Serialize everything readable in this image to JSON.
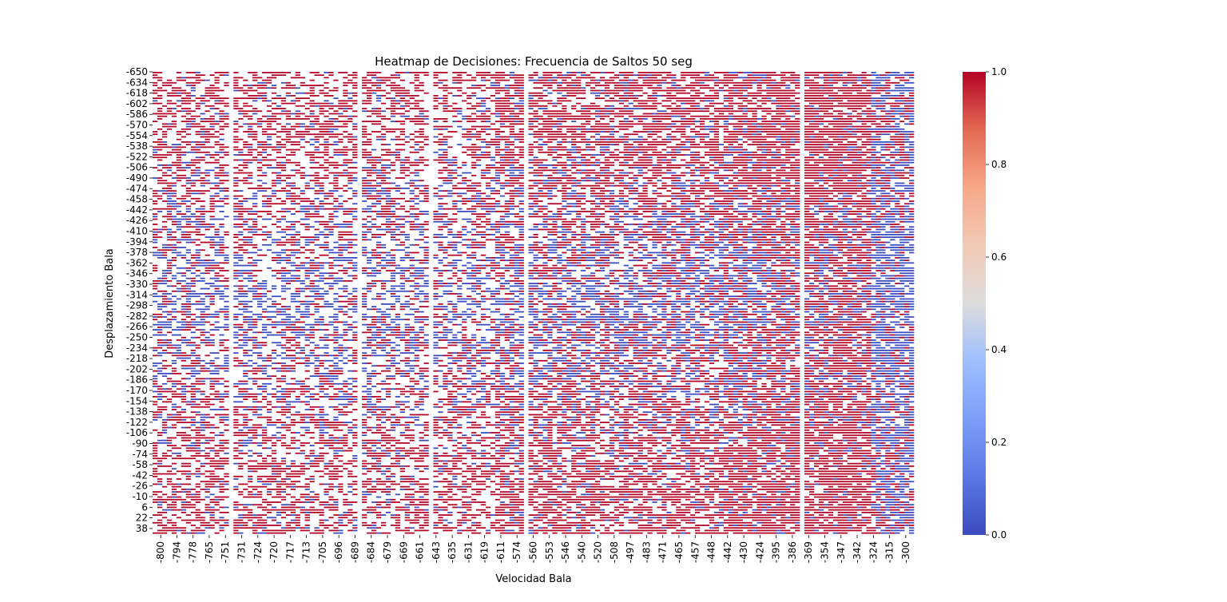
{
  "chart_data": {
    "type": "heatmap",
    "title": "Heatmap de Decisiones: Frecuencia de Saltos 50 seg",
    "xlabel": "Velocidad Bala",
    "ylabel": "Desplazamiento Bala",
    "x_tick_labels": [
      "-800",
      "-794",
      "-778",
      "-765",
      "-751",
      "-731",
      "-724",
      "-720",
      "-717",
      "-713",
      "-705",
      "-696",
      "-689",
      "-684",
      "-679",
      "-669",
      "-661",
      "-643",
      "-635",
      "-631",
      "-619",
      "-611",
      "-574",
      "-560",
      "-553",
      "-546",
      "-540",
      "-520",
      "-508",
      "-497",
      "-483",
      "-471",
      "-465",
      "-457",
      "-448",
      "-442",
      "-430",
      "-424",
      "-395",
      "-386",
      "-369",
      "-354",
      "-347",
      "-342",
      "-324",
      "-315",
      "-300"
    ],
    "y_tick_labels": [
      "-650",
      "-634",
      "-618",
      "-602",
      "-586",
      "-570",
      "-554",
      "-538",
      "-522",
      "-506",
      "-490",
      "-474",
      "-458",
      "-442",
      "-426",
      "-410",
      "-394",
      "-378",
      "-362",
      "-346",
      "-330",
      "-314",
      "-298",
      "-282",
      "-266",
      "-250",
      "-234",
      "-218",
      "-202",
      "-186",
      "-170",
      "-154",
      "-138",
      "-122",
      "-106",
      "-90",
      "-74",
      "-58",
      "-42",
      "-26",
      "-10",
      "6",
      "22",
      "38"
    ],
    "colorbar": {
      "min": 0.0,
      "max": 1.0,
      "ticks": [
        "0.0",
        "0.2",
        "0.4",
        "0.6",
        "0.8",
        "1.0"
      ],
      "colormap": "coolwarm",
      "low_color": "#3b4cc0",
      "mid_color": "#dddddd",
      "high_color": "#b40426"
    },
    "values_description_note": "",
    "grid": false,
    "legend": "colorbar-right"
  }
}
